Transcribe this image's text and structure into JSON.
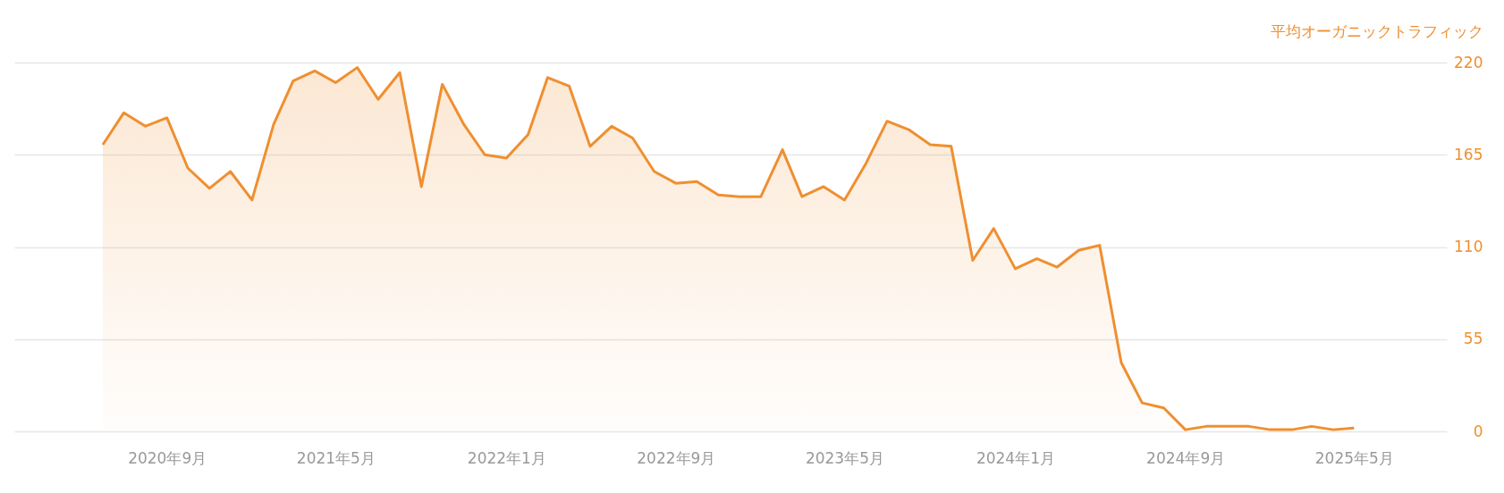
{
  "chart_data": {
    "type": "area",
    "ylabel": "平均オーガニックトラフィック",
    "x": [
      "2020-06",
      "2020-07",
      "2020-08",
      "2020-09",
      "2020-10",
      "2020-11",
      "2020-12",
      "2021-01",
      "2021-02",
      "2021-03",
      "2021-04",
      "2021-05",
      "2021-06",
      "2021-07",
      "2021-08",
      "2021-09",
      "2021-10",
      "2021-11",
      "2021-12",
      "2022-01",
      "2022-02",
      "2022-03",
      "2022-04",
      "2022-05",
      "2022-06",
      "2022-07",
      "2022-08",
      "2022-09",
      "2022-10",
      "2022-11",
      "2022-12",
      "2023-01",
      "2023-02",
      "2023-03",
      "2023-04",
      "2023-05",
      "2023-06",
      "2023-07",
      "2023-08",
      "2023-09",
      "2023-10",
      "2023-11",
      "2023-12",
      "2024-01",
      "2024-02",
      "2024-03",
      "2024-04",
      "2024-05",
      "2024-06",
      "2024-07",
      "2024-08",
      "2024-09",
      "2024-10",
      "2024-11",
      "2024-12",
      "2025-01",
      "2025-02",
      "2025-03",
      "2025-04",
      "2025-05"
    ],
    "series": [
      {
        "color": "#ef8f30",
        "values": [
          171,
          190,
          182,
          187,
          157,
          145,
          155,
          138,
          183,
          209,
          215,
          208,
          217,
          198,
          214,
          146,
          207,
          183,
          165,
          163,
          177,
          211,
          206,
          170,
          182,
          175,
          155,
          148,
          149,
          141,
          140,
          140,
          168,
          140,
          146,
          138,
          160,
          185,
          180,
          171,
          170,
          102,
          121,
          97,
          103,
          98,
          108,
          111,
          41,
          17,
          14,
          1,
          3,
          3,
          3,
          1,
          1,
          3,
          1,
          2
        ]
      }
    ],
    "xlim": [
      "2020-01-26",
      "2025-09-11"
    ],
    "xticks": [
      {
        "value": "2020-09",
        "label": "2020年9月"
      },
      {
        "value": "2021-05",
        "label": "2021年5月"
      },
      {
        "value": "2022-01",
        "label": "2022年1月"
      },
      {
        "value": "2022-09",
        "label": "2022年9月"
      },
      {
        "value": "2023-05",
        "label": "2023年5月"
      },
      {
        "value": "2024-01",
        "label": "2024年1月"
      },
      {
        "value": "2024-09",
        "label": "2024年9月"
      },
      {
        "value": "2025-05",
        "label": "2025年5月"
      }
    ],
    "ylim": [
      0,
      220
    ],
    "yticks": [
      0,
      55,
      110,
      165,
      220
    ],
    "grid": "y",
    "legend": false,
    "marker": "none",
    "line_style": "solid"
  }
}
